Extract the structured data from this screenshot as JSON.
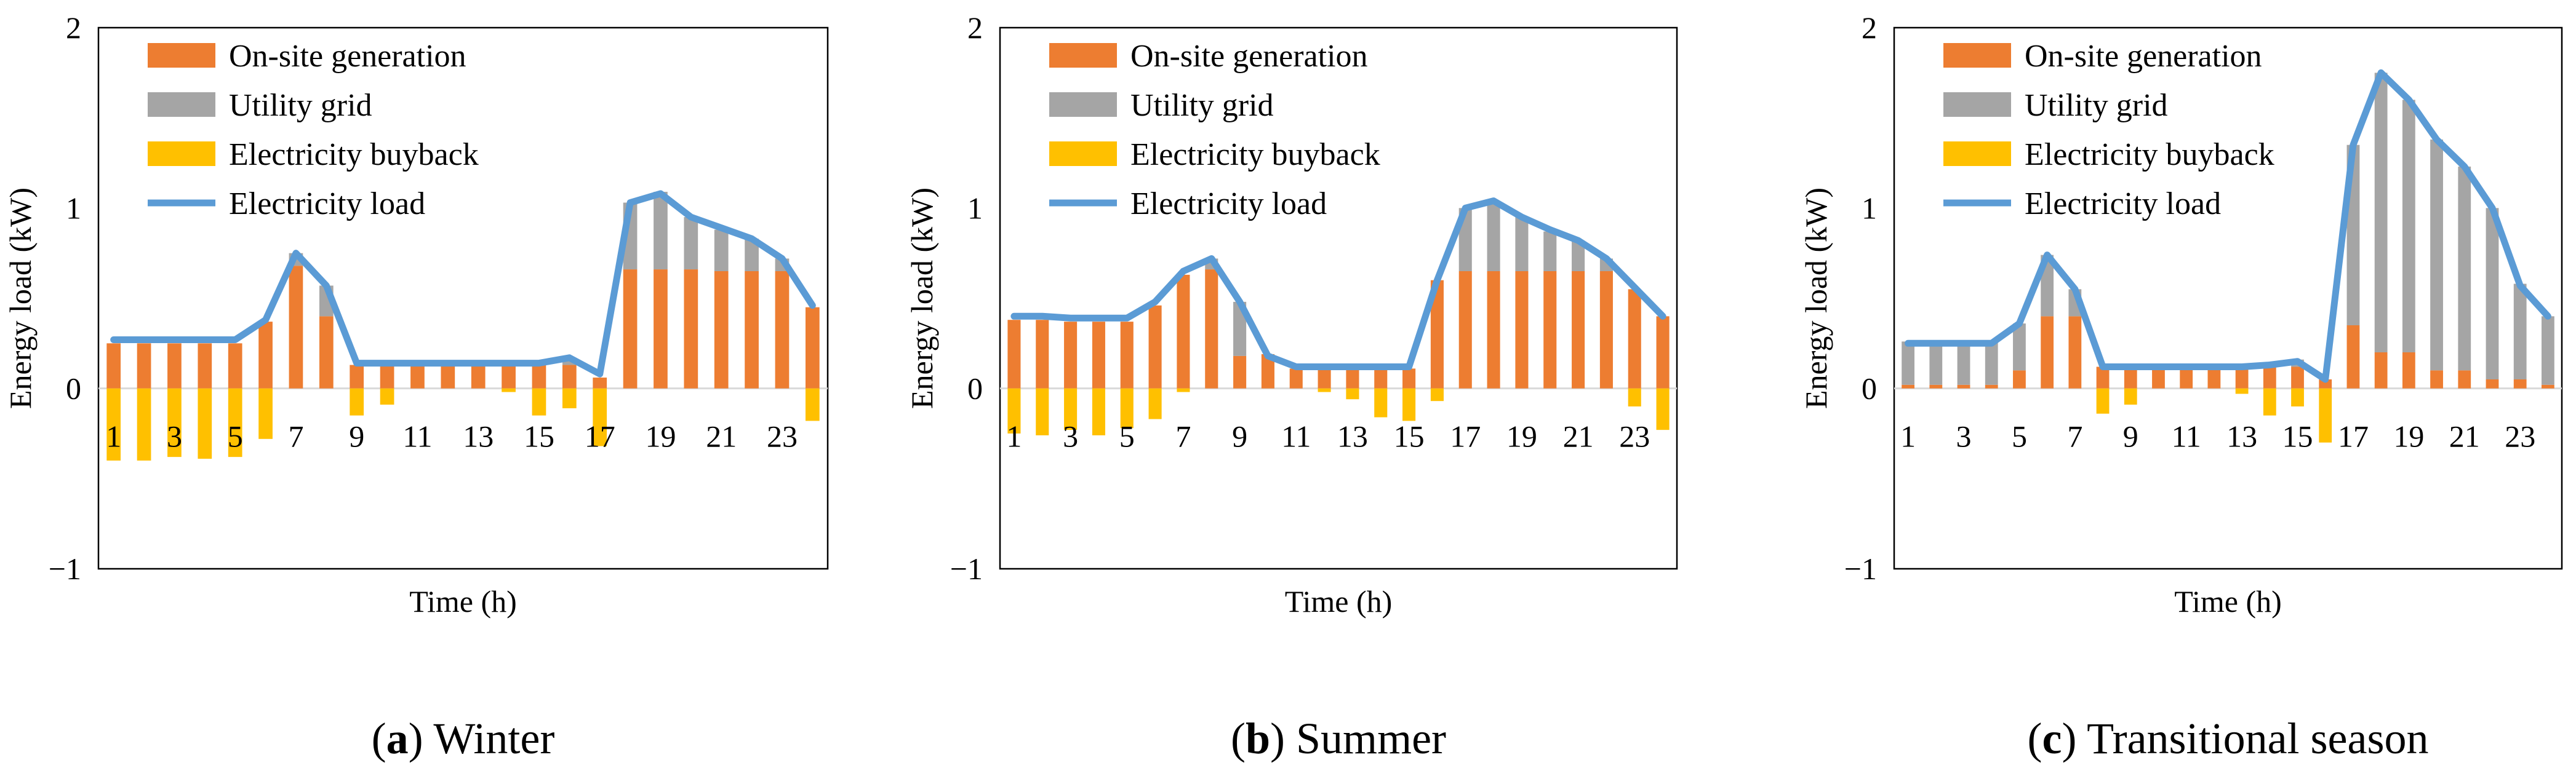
{
  "figure": {
    "panels": [
      {
        "caption_letter": "a",
        "caption_text": "Winter"
      },
      {
        "caption_letter": "b",
        "caption_text": "Summer"
      },
      {
        "caption_letter": "c",
        "caption_text": "Transitional season"
      }
    ]
  },
  "colors": {
    "onsite": "#ED7D31",
    "grid": "#A5A5A5",
    "buyback": "#FFC000",
    "load": "#5B9BD5"
  },
  "chart_data": [
    {
      "type": "bar",
      "stacked": true,
      "title": "Winter",
      "xlabel": "Time (h)",
      "ylabel": "Energy load (kW)",
      "ylim": [
        -1,
        2
      ],
      "yticks": [
        "−1",
        "0",
        "1",
        "2"
      ],
      "ytick_values": [
        -1,
        0,
        1,
        2
      ],
      "x": [
        1,
        2,
        3,
        4,
        5,
        6,
        7,
        8,
        9,
        10,
        11,
        12,
        13,
        14,
        15,
        16,
        17,
        18,
        19,
        20,
        21,
        22,
        23,
        24
      ],
      "xtick_labels": [
        "1",
        "3",
        "5",
        "7",
        "9",
        "11",
        "13",
        "15",
        "17",
        "19",
        "21",
        "23"
      ],
      "xtick_positions": [
        1,
        3,
        5,
        7,
        9,
        11,
        13,
        15,
        17,
        19,
        21,
        23
      ],
      "legend": [
        "On-site generation",
        "Utility grid",
        "Electricity buyback",
        "Electricity load"
      ],
      "legend_position": "top-left",
      "series": [
        {
          "name": "On-site generation",
          "kind": "bar",
          "values": [
            0.25,
            0.25,
            0.25,
            0.25,
            0.25,
            0.37,
            0.68,
            0.4,
            0.13,
            0.13,
            0.13,
            0.13,
            0.13,
            0.13,
            0.13,
            0.13,
            0.06,
            0.66,
            0.66,
            0.66,
            0.65,
            0.65,
            0.65,
            0.45
          ]
        },
        {
          "name": "Utility grid",
          "kind": "bar",
          "values": [
            0,
            0,
            0,
            0,
            0,
            0,
            0.07,
            0.17,
            0,
            0,
            0,
            0,
            0,
            0,
            0,
            0.04,
            0,
            0.37,
            0.43,
            0.29,
            0.23,
            0.18,
            0.07,
            0
          ]
        },
        {
          "name": "Electricity buyback",
          "kind": "bar",
          "values": [
            -0.4,
            -0.4,
            -0.38,
            -0.39,
            -0.38,
            -0.28,
            0,
            0,
            -0.15,
            -0.09,
            0,
            0,
            0,
            -0.02,
            -0.15,
            -0.11,
            -0.32,
            0,
            0,
            0,
            0,
            0,
            0,
            -0.18
          ]
        },
        {
          "name": "Electricity load",
          "kind": "line",
          "values": [
            0.27,
            0.27,
            0.27,
            0.27,
            0.27,
            0.38,
            0.75,
            0.57,
            0.14,
            0.14,
            0.14,
            0.14,
            0.14,
            0.14,
            0.14,
            0.17,
            0.08,
            1.03,
            1.08,
            0.95,
            0.89,
            0.83,
            0.72,
            0.46
          ]
        }
      ]
    },
    {
      "type": "bar",
      "stacked": true,
      "title": "Summer",
      "xlabel": "Time (h)",
      "ylabel": "Energy load (kW)",
      "ylim": [
        -1,
        2
      ],
      "yticks": [
        "−1",
        "0",
        "1",
        "2"
      ],
      "ytick_values": [
        -1,
        0,
        1,
        2
      ],
      "x": [
        1,
        2,
        3,
        4,
        5,
        6,
        7,
        8,
        9,
        10,
        11,
        12,
        13,
        14,
        15,
        16,
        17,
        18,
        19,
        20,
        21,
        22,
        23,
        24
      ],
      "xtick_labels": [
        "1",
        "3",
        "5",
        "7",
        "9",
        "11",
        "13",
        "15",
        "17",
        "19",
        "21",
        "23"
      ],
      "xtick_positions": [
        1,
        3,
        5,
        7,
        9,
        11,
        13,
        15,
        17,
        19,
        21,
        23
      ],
      "legend": [
        "On-site generation",
        "Utility grid",
        "Electricity buyback",
        "Electricity load"
      ],
      "legend_position": "top-left",
      "series": [
        {
          "name": "On-site generation",
          "kind": "bar",
          "values": [
            0.38,
            0.38,
            0.37,
            0.37,
            0.37,
            0.46,
            0.63,
            0.66,
            0.18,
            0.19,
            0.11,
            0.11,
            0.11,
            0.11,
            0.11,
            0.6,
            0.65,
            0.65,
            0.65,
            0.65,
            0.65,
            0.65,
            0.55,
            0.4
          ]
        },
        {
          "name": "Utility grid",
          "kind": "bar",
          "values": [
            0,
            0,
            0,
            0,
            0,
            0,
            0,
            0.06,
            0.3,
            0,
            0,
            0,
            0,
            0,
            0,
            0,
            0.35,
            0.38,
            0.3,
            0.22,
            0.17,
            0.07,
            0,
            0
          ]
        },
        {
          "name": "Electricity buyback",
          "kind": "bar",
          "values": [
            -0.25,
            -0.26,
            -0.23,
            -0.26,
            -0.22,
            -0.17,
            -0.02,
            0,
            0,
            0,
            0,
            -0.02,
            -0.06,
            -0.16,
            -0.18,
            -0.07,
            0,
            0,
            0,
            0,
            0,
            0,
            -0.1,
            -0.23
          ]
        },
        {
          "name": "Electricity load",
          "kind": "line",
          "values": [
            0.4,
            0.4,
            0.39,
            0.39,
            0.39,
            0.48,
            0.65,
            0.72,
            0.48,
            0.18,
            0.12,
            0.12,
            0.12,
            0.12,
            0.12,
            0.6,
            1.0,
            1.04,
            0.95,
            0.88,
            0.82,
            0.72,
            0.56,
            0.4
          ]
        }
      ]
    },
    {
      "type": "bar",
      "stacked": true,
      "title": "Transitional season",
      "xlabel": "Time (h)",
      "ylabel": "Energy load (kW)",
      "ylim": [
        -1,
        2
      ],
      "yticks": [
        "−1",
        "0",
        "1",
        "2"
      ],
      "ytick_values": [
        -1,
        0,
        1,
        2
      ],
      "x": [
        1,
        2,
        3,
        4,
        5,
        6,
        7,
        8,
        9,
        10,
        11,
        12,
        13,
        14,
        15,
        16,
        17,
        18,
        19,
        20,
        21,
        22,
        23,
        24
      ],
      "xtick_labels": [
        "1",
        "3",
        "5",
        "7",
        "9",
        "11",
        "13",
        "15",
        "17",
        "19",
        "21",
        "23"
      ],
      "xtick_positions": [
        1,
        3,
        5,
        7,
        9,
        11,
        13,
        15,
        17,
        19,
        21,
        23
      ],
      "legend": [
        "On-site generation",
        "Utility grid",
        "Electricity buyback",
        "Electricity load"
      ],
      "legend_position": "top-left",
      "series": [
        {
          "name": "On-site generation",
          "kind": "bar",
          "values": [
            0.02,
            0.02,
            0.02,
            0.02,
            0.1,
            0.4,
            0.4,
            0.12,
            0.12,
            0.12,
            0.12,
            0.12,
            0.12,
            0.12,
            0.12,
            0.05,
            0.35,
            0.2,
            0.2,
            0.1,
            0.1,
            0.05,
            0.05,
            0.02
          ]
        },
        {
          "name": "Utility grid",
          "kind": "bar",
          "values": [
            0.24,
            0.24,
            0.24,
            0.24,
            0.26,
            0.34,
            0.15,
            0,
            0,
            0,
            0,
            0,
            0,
            0,
            0.04,
            0,
            1.0,
            1.55,
            1.4,
            1.28,
            1.13,
            0.95,
            0.53,
            0.38
          ]
        },
        {
          "name": "Electricity buyback",
          "kind": "bar",
          "values": [
            0,
            0,
            0,
            0,
            0,
            0,
            0,
            -0.14,
            -0.09,
            0,
            0,
            0,
            -0.03,
            -0.15,
            -0.1,
            -0.3,
            0,
            0,
            0,
            0,
            0,
            0,
            0,
            0
          ]
        },
        {
          "name": "Electricity load",
          "kind": "line",
          "values": [
            0.25,
            0.25,
            0.25,
            0.25,
            0.36,
            0.74,
            0.55,
            0.12,
            0.12,
            0.12,
            0.12,
            0.12,
            0.12,
            0.13,
            0.15,
            0.05,
            1.35,
            1.75,
            1.6,
            1.38,
            1.23,
            1.0,
            0.57,
            0.4
          ]
        }
      ]
    }
  ]
}
